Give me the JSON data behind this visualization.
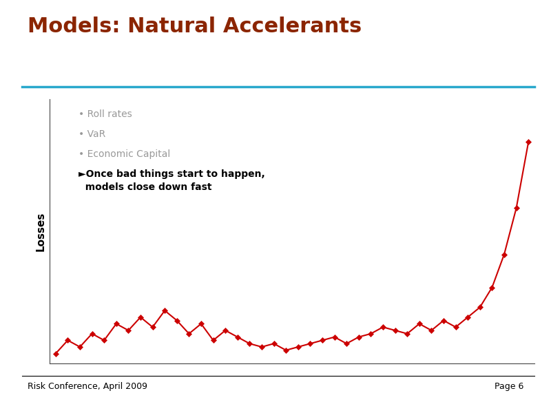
{
  "title": "Models: Natural Accelerants",
  "title_color": "#8B2500",
  "title_fontsize": 22,
  "title_fontweight": "bold",
  "separator_color": "#29A8CC",
  "ylabel": "Losses",
  "ylabel_fontsize": 11,
  "ylabel_fontweight": "bold",
  "bullet_items": [
    "Roll rates",
    "VaR",
    "Economic Capital"
  ],
  "bullet_color": "#999999",
  "bullet_fontsize": 10,
  "arrow_text_line1": "►Once bad things start to happen,",
  "arrow_text_line2": "  models close down fast",
  "arrow_text_fontsize": 10,
  "arrow_text_fontweight": "bold",
  "arrow_text_color": "#000000",
  "line_color": "#CC0000",
  "marker_color": "#CC0000",
  "footer_left": "Risk Conference, April 2009",
  "footer_right": "Page 6",
  "footer_fontsize": 9,
  "background_color": "#FFFFFF",
  "y_data": [
    1.8,
    2.2,
    2.0,
    2.4,
    2.2,
    2.7,
    2.5,
    2.9,
    2.6,
    3.1,
    2.8,
    2.4,
    2.7,
    2.2,
    2.5,
    2.3,
    2.1,
    2.0,
    2.1,
    1.9,
    2.0,
    2.1,
    2.2,
    2.3,
    2.1,
    2.3,
    2.4,
    2.6,
    2.5,
    2.4,
    2.7,
    2.5,
    2.8,
    2.6,
    2.9,
    3.2,
    3.8,
    4.8,
    6.2,
    8.2
  ]
}
